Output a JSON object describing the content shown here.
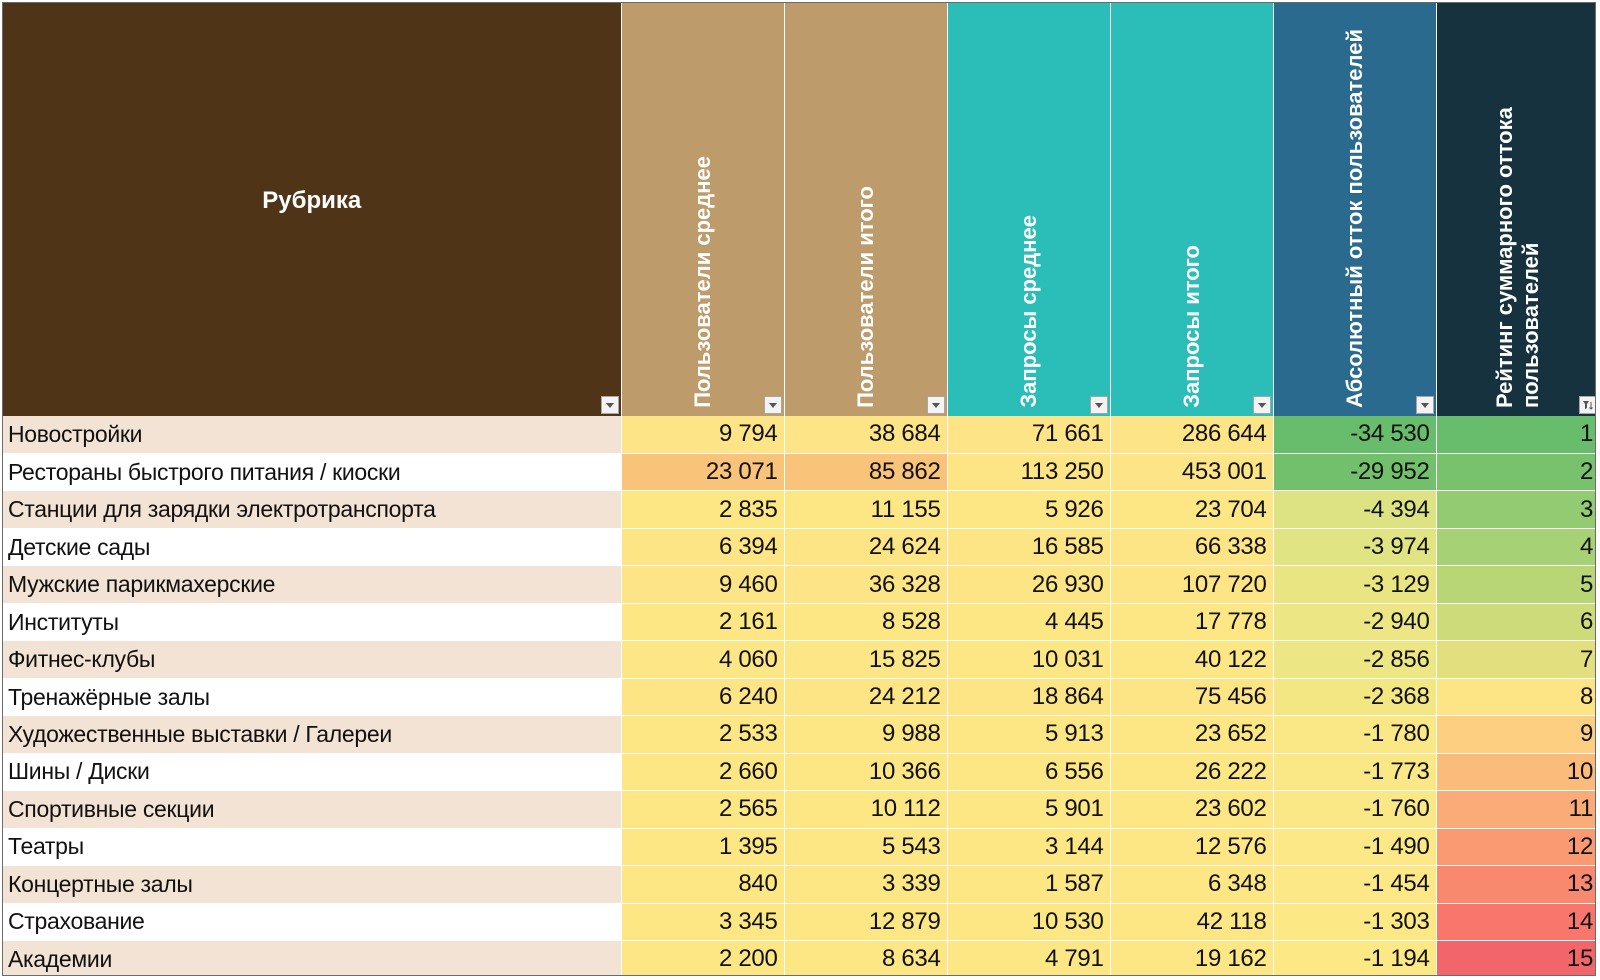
{
  "sheet": {
    "columns": [
      {
        "label": "Рубрика",
        "color": "#4f3418",
        "vertical": false
      },
      {
        "label": "Пользователи среднее",
        "color": "#be9b6b",
        "vertical": true
      },
      {
        "label": "Пользователи итого",
        "color": "#be9b6b",
        "vertical": true
      },
      {
        "label": "Запросы среднее",
        "color": "#2bbdb8",
        "vertical": true
      },
      {
        "label": "Запросы итого",
        "color": "#2bbdb8",
        "vertical": true
      },
      {
        "label": "Абсолютный отток пользователей",
        "color": "#2a6a8f",
        "vertical": true
      },
      {
        "label": "Рейтинг суммарного оттока пользователей",
        "color": "#17323f",
        "vertical": true
      }
    ],
    "filter_icon": "dropdown-arrow-icon",
    "sorted_filter_icon": "sort-filter-icon",
    "rows": [
      {
        "name": "Новостройки",
        "cells": [
          "9 794",
          "38 684",
          "71 661",
          "286 644",
          "-34 530",
          "1"
        ],
        "colors": [
          "#fce487",
          "#fce487",
          "#fce487",
          "#fce487",
          "#67bd6b",
          "#67bd6b"
        ]
      },
      {
        "name": "Рестораны быстрого питания / киоски",
        "cells": [
          "23 071",
          "85 862",
          "113 250",
          "453 001",
          "-29 952",
          "2"
        ],
        "colors": [
          "#f9c37a",
          "#f9c37a",
          "#fde485",
          "#fce487",
          "#72c06c",
          "#78c26d"
        ]
      },
      {
        "name": "Станции для зарядки электротранспорта",
        "cells": [
          "2 835",
          "11 155",
          "5 926",
          "23 704",
          "-4 394",
          "3"
        ],
        "colors": [
          "#fde785",
          "#fde785",
          "#fde785",
          "#fde785",
          "#dde383",
          "#93cb72"
        ]
      },
      {
        "name": "Детские сады",
        "cells": [
          "6 394",
          "24 624",
          "16 585",
          "66 338",
          "-3 974",
          "4"
        ],
        "colors": [
          "#fde585",
          "#fde585",
          "#fde585",
          "#fde585",
          "#e1e483",
          "#a6d174"
        ]
      },
      {
        "name": "Мужские парикмахерские",
        "cells": [
          "9 460",
          "36 328",
          "26 930",
          "107 720",
          "-3 129",
          "5"
        ],
        "colors": [
          "#fce487",
          "#fce487",
          "#fde585",
          "#fde585",
          "#eae583",
          "#b9d677"
        ]
      },
      {
        "name": "Институты",
        "cells": [
          "2 161",
          "8 528",
          "4 445",
          "17 778",
          "-2 940",
          "6"
        ],
        "colors": [
          "#fde785",
          "#fde785",
          "#fde785",
          "#fde785",
          "#ece684",
          "#cddb7a"
        ]
      },
      {
        "name": "Фитнес-клубы",
        "cells": [
          "4 060",
          "15 825",
          "10 031",
          "40 122",
          "-2 856",
          "7"
        ],
        "colors": [
          "#fde685",
          "#fde685",
          "#fde785",
          "#fde785",
          "#ede684",
          "#e2e07e"
        ]
      },
      {
        "name": "Тренажёрные залы",
        "cells": [
          "6 240",
          "24 212",
          "18 864",
          "75 456",
          "-2 368",
          "8"
        ],
        "colors": [
          "#fde585",
          "#fde585",
          "#fde585",
          "#fde585",
          "#f3e784",
          "#fde484"
        ]
      },
      {
        "name": "Художественные выставки / Галереи",
        "cells": [
          "2 533",
          "9 988",
          "5 913",
          "23 652",
          "-1 780",
          "9"
        ],
        "colors": [
          "#fde785",
          "#fde785",
          "#fde785",
          "#fde785",
          "#fae785",
          "#fcd080"
        ]
      },
      {
        "name": "Шины / Диски",
        "cells": [
          "2 660",
          "10 366",
          "6 556",
          "26 222",
          "-1 773",
          "10"
        ],
        "colors": [
          "#fde785",
          "#fde785",
          "#fde785",
          "#fde785",
          "#fae785",
          "#fbbc7b"
        ]
      },
      {
        "name": "Спортивные секции",
        "cells": [
          "2 565",
          "10 112",
          "5 901",
          "23 602",
          "-1 760",
          "11"
        ],
        "colors": [
          "#fde785",
          "#fde785",
          "#fde785",
          "#fde785",
          "#fae785",
          "#fbab77"
        ]
      },
      {
        "name": "Театры",
        "cells": [
          "1 395",
          "5 543",
          "3 144",
          "12 576",
          "-1 490",
          "12"
        ],
        "colors": [
          "#fde785",
          "#fde785",
          "#fde785",
          "#fde785",
          "#fce886",
          "#f99a73"
        ]
      },
      {
        "name": "Концертные залы",
        "cells": [
          "840",
          "3 339",
          "1 587",
          "6 348",
          "-1 454",
          "13"
        ],
        "colors": [
          "#fde785",
          "#fde785",
          "#fde785",
          "#fde785",
          "#fce886",
          "#f8896f"
        ]
      },
      {
        "name": "Страхование",
        "cells": [
          "3 345",
          "12 879",
          "10 530",
          "42 118",
          "-1 303",
          "14"
        ],
        "colors": [
          "#fde785",
          "#fde785",
          "#fde785",
          "#fde785",
          "#fde886",
          "#f8766c"
        ]
      },
      {
        "name": "Академии",
        "cells": [
          "2 200",
          "8 634",
          "4 791",
          "19 162",
          "-1 194",
          "15"
        ],
        "colors": [
          "#fde785",
          "#fde785",
          "#fde785",
          "#fde785",
          "#fde886",
          "#f2656a"
        ]
      }
    ]
  }
}
